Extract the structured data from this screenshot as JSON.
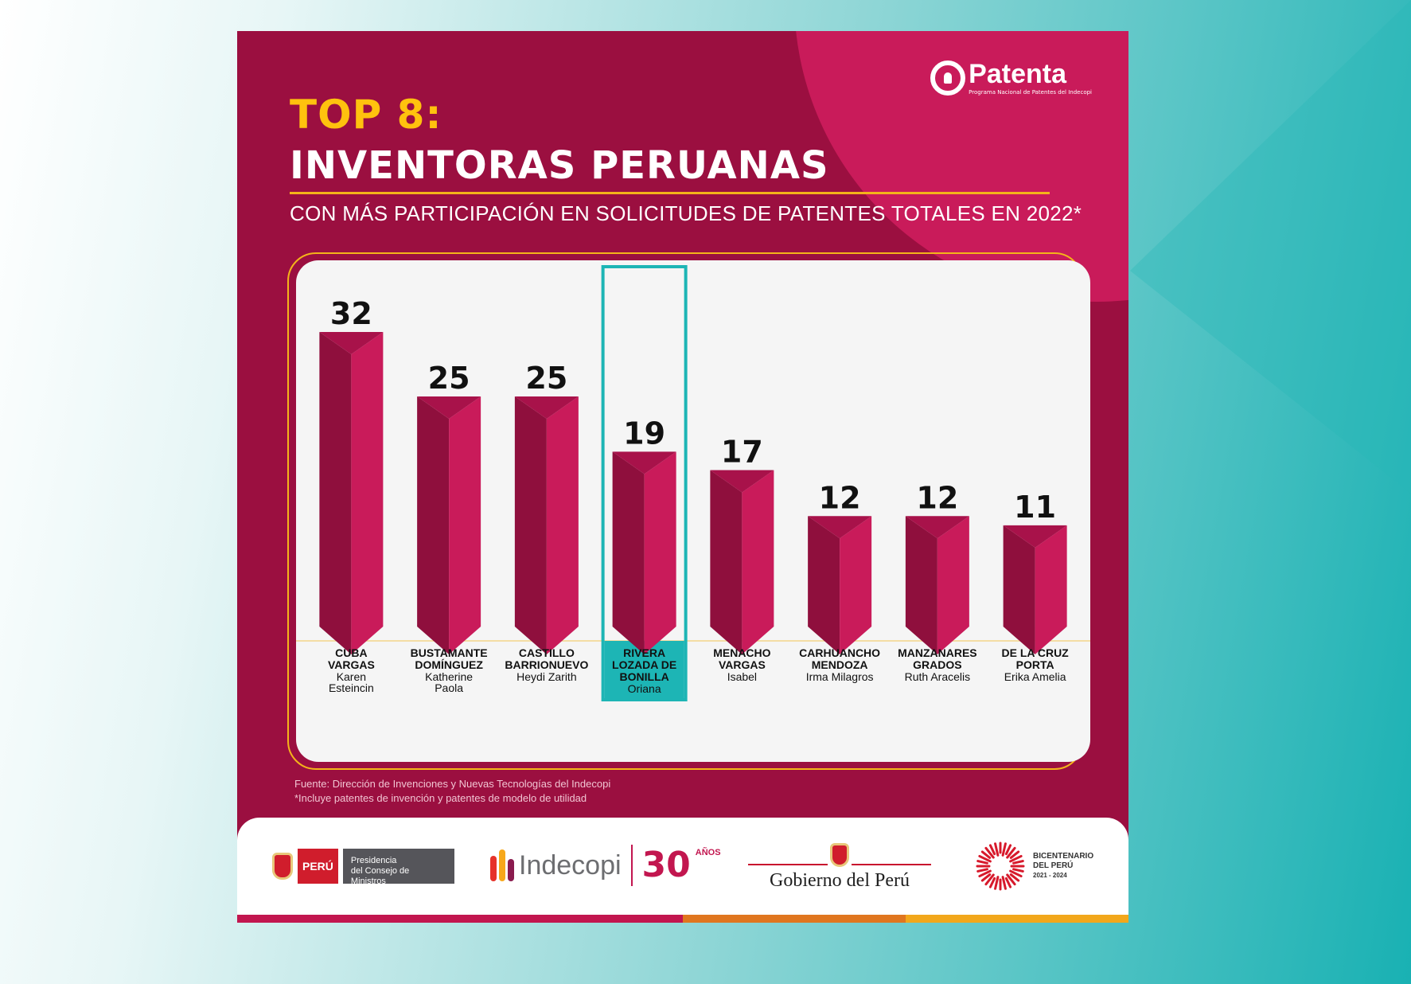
{
  "header": {
    "title_top": "TOP 8:",
    "title_main": "INVENTORAS PERUANAS",
    "subtitle": "CON MÁS PARTICIPACIÓN EN SOLICITUDES DE PATENTES TOTALES EN 2022*"
  },
  "brand": {
    "patenta_name": "Patenta",
    "patenta_tagline": "Programa Nacional de Patentes del Indecopi"
  },
  "chart_data": {
    "type": "bar",
    "title": "INVENTORAS PERUANAS",
    "categories": [
      {
        "surname": "CUBA VARGAS",
        "surname_lines": [
          "CUBA",
          "VARGAS"
        ],
        "given_lines": [
          "Karen",
          "Esteincin"
        ]
      },
      {
        "surname": "BUSTAMANTE DOMÍNGUEZ",
        "surname_lines": [
          "BUSTAMANTE",
          "DOMÍNGUEZ"
        ],
        "given_lines": [
          "Katherine",
          "Paola"
        ]
      },
      {
        "surname": "CASTILLO BARRIONUEVO",
        "surname_lines": [
          "CASTILLO",
          "BARRIONUEVO"
        ],
        "given_lines": [
          "Heydi Zarith"
        ]
      },
      {
        "surname": "RIVERA LOZADA DE BONILLA",
        "surname_lines": [
          "RIVERA",
          "LOZADA DE",
          "BONILLA"
        ],
        "given_lines": [
          "Oriana"
        ]
      },
      {
        "surname": "MENACHO VARGAS",
        "surname_lines": [
          "MENACHO",
          "VARGAS"
        ],
        "given_lines": [
          "Isabel"
        ]
      },
      {
        "surname": "CARHUANCHO MENDOZA",
        "surname_lines": [
          "CARHUANCHO",
          "MENDOZA"
        ],
        "given_lines": [
          "Irma Milagros"
        ]
      },
      {
        "surname": "MANZANARES GRADOS",
        "surname_lines": [
          "MANZANARES",
          "GRADOS"
        ],
        "given_lines": [
          "Ruth Aracelis"
        ]
      },
      {
        "surname": "DE LA CRUZ PORTA",
        "surname_lines": [
          "DE LA CRUZ",
          "PORTA"
        ],
        "given_lines": [
          "Erika Amelia"
        ]
      }
    ],
    "values": [
      32,
      25,
      25,
      19,
      17,
      12,
      12,
      11
    ],
    "highlighted_index": 3,
    "grid": false,
    "colors": {
      "bar_light": "#c91b5a",
      "bar_dark": "#8f0f3d",
      "highlight": "#1db5b5",
      "label": "#111111"
    }
  },
  "footnotes": {
    "source": "Fuente: Dirección de Invenciones y Nuevas Tecnologías del Indecopi",
    "note": "*Incluye patentes de invención y patentes de modelo de utilidad"
  },
  "footer": {
    "pcm_country": "PERÚ",
    "pcm_line1": "Presidencia",
    "pcm_line2": "del Consejo de Ministros",
    "indecopi": "Indecopi",
    "indecopi_years": "30",
    "indecopi_anos": "AÑOS",
    "gobierno": "Gobierno del Perú",
    "bicentenario_1": "BICENTENARIO",
    "bicentenario_2": "DEL PERÚ",
    "bicentenario_years": "2021 - 2024"
  },
  "theme": {
    "card_bg": "#9b0f40",
    "accent_pink": "#c91b5a",
    "accent_yellow": "#ffc20e"
  }
}
